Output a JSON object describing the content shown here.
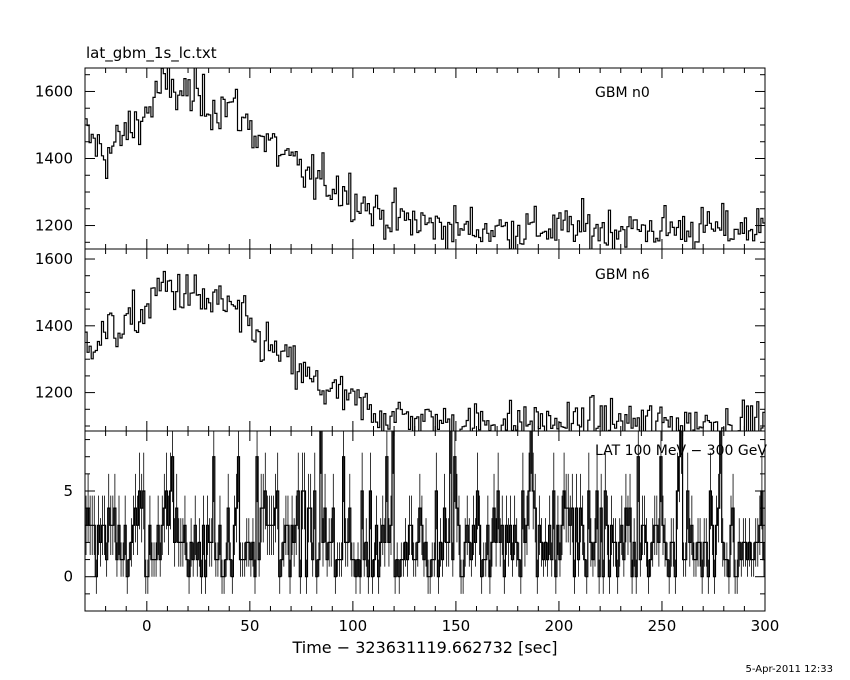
{
  "plot_title": "lat_gbm_1s_lc.txt",
  "timestamp": "5-Apr-2011 12:33",
  "xlabel": "Time − 323631119.662732 [sec]",
  "chart_data": [
    {
      "type": "line",
      "name": "GBM n0",
      "xlim": [
        -30,
        300
      ],
      "ylim": [
        1130,
        1670
      ],
      "yticks": [
        1200,
        1400,
        1600
      ],
      "xticks": [
        0,
        50,
        100,
        150,
        200,
        250,
        300
      ],
      "series": [
        {
          "name": "GBM n0",
          "x": [
            -30,
            -20,
            -10,
            0,
            5,
            10,
            20,
            30,
            40,
            50,
            60,
            70,
            80,
            90,
            100,
            110,
            120,
            130,
            140,
            150,
            175,
            200,
            225,
            250,
            275,
            300
          ],
          "values": [
            1470,
            1410,
            1480,
            1540,
            1600,
            1610,
            1590,
            1560,
            1560,
            1490,
            1440,
            1380,
            1340,
            1320,
            1290,
            1240,
            1220,
            1210,
            1200,
            1190,
            1190,
            1190,
            1190,
            1190,
            1190,
            1190
          ]
        }
      ]
    },
    {
      "type": "line",
      "name": "GBM n6",
      "xlim": [
        -30,
        300
      ],
      "ylim": [
        1085,
        1630
      ],
      "yticks": [
        1200,
        1400,
        1600
      ],
      "xticks": [
        0,
        50,
        100,
        150,
        200,
        250,
        300
      ],
      "series": [
        {
          "name": "GBM n6",
          "x": [
            -30,
            -20,
            -10,
            0,
            5,
            10,
            20,
            30,
            40,
            50,
            60,
            70,
            80,
            90,
            100,
            110,
            120,
            130,
            140,
            150,
            175,
            200,
            225,
            250,
            275,
            300
          ],
          "values": [
            1350,
            1380,
            1400,
            1450,
            1510,
            1520,
            1490,
            1470,
            1460,
            1380,
            1330,
            1280,
            1230,
            1200,
            1170,
            1140,
            1130,
            1120,
            1110,
            1110,
            1110,
            1110,
            1110,
            1110,
            1110,
            1110
          ]
        }
      ]
    },
    {
      "type": "line",
      "name": "LAT 100 MeV − 300 GeV",
      "xlim": [
        -30,
        300
      ],
      "ylim": [
        -2,
        8.5
      ],
      "yticks": [
        0,
        5
      ],
      "xticks": [
        0,
        50,
        100,
        150,
        200,
        250,
        300
      ],
      "series": [
        {
          "name": "LAT 100 MeV − 300 GeV",
          "x": [
            -30,
            300
          ],
          "values": [
            2,
            2
          ]
        }
      ]
    }
  ]
}
